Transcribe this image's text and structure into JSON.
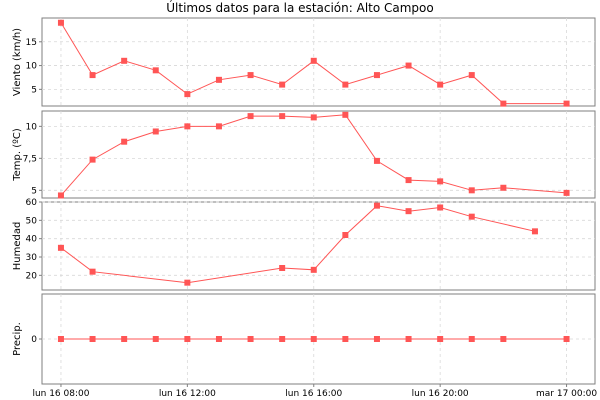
{
  "chart_data": {
    "type": "line",
    "title": "Últimos datos para la estación: Alto Campoo",
    "x_tick_labels": [
      "lun 16 08:00",
      "lun 16 12:00",
      "lun 16 16:00",
      "lun 16 20:00",
      "mar 17 00:00"
    ],
    "x_tick_hours": [
      8,
      12,
      16,
      20,
      24
    ],
    "x_range_hours": [
      7.4,
      24.9
    ],
    "x_hours": [
      8,
      9,
      10,
      11,
      12,
      13,
      14,
      15,
      16,
      17,
      18,
      19,
      20,
      21,
      22,
      23,
      24
    ],
    "series_color": "#ff5555",
    "panels": [
      {
        "name": "viento",
        "ylabel": "Viento (km/h)",
        "ylim": [
          1.5,
          20
        ],
        "yticks": [
          5,
          10,
          15
        ],
        "ytick_labels": [
          "5",
          "10",
          "15"
        ],
        "points": [
          [
            8,
            19
          ],
          [
            9,
            8
          ],
          [
            10,
            11
          ],
          [
            11,
            9
          ],
          [
            12,
            4
          ],
          [
            13,
            7
          ],
          [
            14,
            8
          ],
          [
            15,
            6
          ],
          [
            16,
            11
          ],
          [
            17,
            6
          ],
          [
            18,
            8
          ],
          [
            19,
            10
          ],
          [
            20,
            6
          ],
          [
            21,
            8
          ],
          [
            22,
            2
          ],
          [
            24,
            2
          ]
        ]
      },
      {
        "name": "temperatura",
        "ylabel": "Temp. (ºC)",
        "ylim": [
          4.4,
          11.2
        ],
        "yticks": [
          5,
          7.5,
          10
        ],
        "ytick_labels": [
          "5",
          "7,5",
          "10"
        ],
        "points": [
          [
            8,
            4.6
          ],
          [
            9,
            7.4
          ],
          [
            10,
            8.8
          ],
          [
            11,
            9.6
          ],
          [
            12,
            10.0
          ],
          [
            13,
            10.0
          ],
          [
            14,
            10.8
          ],
          [
            15,
            10.8
          ],
          [
            16,
            10.7
          ],
          [
            17,
            10.9
          ],
          [
            18,
            7.3
          ],
          [
            19,
            5.8
          ],
          [
            20,
            5.7
          ],
          [
            21,
            5.0
          ],
          [
            22,
            5.2
          ],
          [
            24,
            4.8
          ]
        ]
      },
      {
        "name": "humedad",
        "ylabel": "Humedad",
        "ylim": [
          12,
          60
        ],
        "yticks": [
          20,
          30,
          40,
          50,
          60
        ],
        "ytick_labels": [
          "20",
          "30",
          "40",
          "50",
          "60"
        ],
        "points": [
          [
            8,
            35
          ],
          [
            9,
            22
          ],
          [
            12,
            16
          ],
          [
            15,
            24
          ],
          [
            16,
            23
          ],
          [
            17,
            42
          ],
          [
            18,
            58
          ],
          [
            19,
            55
          ],
          [
            20,
            57
          ],
          [
            21,
            52
          ],
          [
            23,
            44
          ]
        ]
      },
      {
        "name": "precipitacion",
        "ylabel": "Precip.",
        "ylim": [
          -1,
          1
        ],
        "yticks": [
          0
        ],
        "ytick_labels": [
          "0"
        ],
        "points": [
          [
            8,
            0
          ],
          [
            9,
            0
          ],
          [
            10,
            0
          ],
          [
            11,
            0
          ],
          [
            12,
            0
          ],
          [
            13,
            0
          ],
          [
            14,
            0
          ],
          [
            15,
            0
          ],
          [
            16,
            0
          ],
          [
            17,
            0
          ],
          [
            18,
            0
          ],
          [
            19,
            0
          ],
          [
            20,
            0
          ],
          [
            21,
            0
          ],
          [
            22,
            0
          ],
          [
            24,
            0
          ]
        ]
      }
    ]
  }
}
